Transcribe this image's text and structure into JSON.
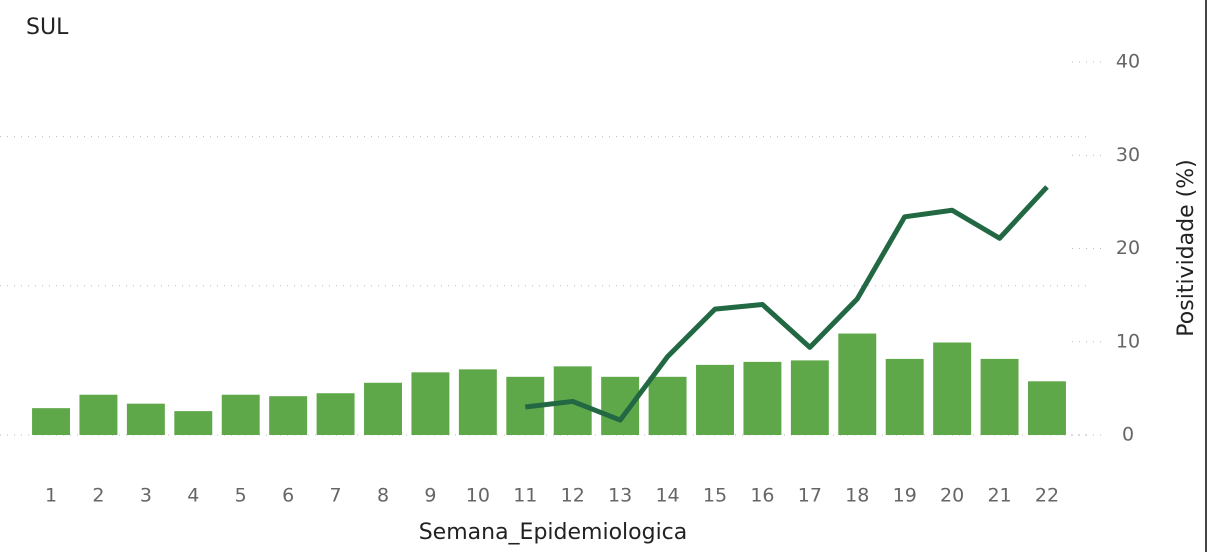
{
  "chart_data": {
    "type": "bar_line",
    "title": "SUL",
    "x_label": "Semana_Epidemiologica",
    "y2_label": "Positividade (%)",
    "categories": [
      "1",
      "2",
      "3",
      "4",
      "5",
      "6",
      "7",
      "8",
      "9",
      "10",
      "11",
      "12",
      "13",
      "14",
      "15",
      "16",
      "17",
      "18",
      "19",
      "20",
      "21",
      "22"
    ],
    "series": [
      {
        "type": "bar",
        "color": "#5fa84a",
        "values": [
          180,
          270,
          210,
          160,
          270,
          260,
          280,
          350,
          420,
          440,
          390,
          460,
          390,
          390,
          470,
          490,
          500,
          680,
          510,
          620,
          510,
          360
        ]
      },
      {
        "type": "line",
        "axis": "y2",
        "color": "#216843",
        "values": [
          null,
          null,
          null,
          null,
          null,
          null,
          null,
          null,
          null,
          null,
          3.0,
          3.6,
          1.6,
          8.4,
          13.5,
          14.0,
          9.4,
          14.6,
          23.4,
          24.1,
          21.1,
          26.6
        ]
      }
    ],
    "ylim": [
      0,
      2500
    ],
    "yticks": [
      0,
      1000,
      2000
    ],
    "y2lim": [
      0,
      40
    ],
    "y2ticks": [
      0,
      10,
      20,
      30,
      40
    ],
    "grid": true
  }
}
